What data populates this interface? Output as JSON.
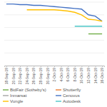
{
  "chart_data": {
    "type": "line",
    "categories": [
      "18-Sep-19",
      "20-Sep-19",
      "22-Sep-19",
      "24-Sep-19",
      "26-Sep-19",
      "28-Sep-19",
      "30-Sep-19",
      "2-Oct-19",
      "4-Oct-19",
      "6-Oct-19",
      "8-Oct-19",
      "10-Oct-19",
      "12-Oct-19",
      "14-Oct-19",
      "16-Oct-19"
    ],
    "series": [
      {
        "name": "BidFair (Sotheby's)",
        "color": "#70ad47",
        "values": [
          null,
          null,
          null,
          null,
          null,
          null,
          null,
          null,
          null,
          null,
          null,
          null,
          50,
          50,
          50
        ]
      },
      {
        "name": "Shutterfly",
        "color": "#ed7d31",
        "values": [
          null,
          null,
          null,
          null,
          null,
          null,
          null,
          null,
          null,
          null,
          null,
          null,
          null,
          null,
          null
        ]
      },
      {
        "name": "Inmarsat",
        "color": "#a5a5a5",
        "values": [
          null,
          null,
          null,
          null,
          null,
          null,
          null,
          null,
          null,
          null,
          null,
          null,
          null,
          null,
          null
        ]
      },
      {
        "name": "Cenovus",
        "color": "#4472c4",
        "values": [
          97,
          97,
          96,
          96,
          95,
          95,
          94,
          93,
          92,
          91,
          90,
          89,
          80,
          78,
          70
        ]
      },
      {
        "name": "Vungle",
        "color": "#ffc000",
        "values": [
          null,
          null,
          null,
          88,
          88,
          88,
          88,
          88,
          87,
          86,
          84,
          80,
          73,
          72,
          70
        ]
      },
      {
        "name": "Autodesk",
        "color": "#4bc6c8",
        "values": [
          null,
          null,
          null,
          null,
          null,
          null,
          null,
          null,
          null,
          null,
          62,
          62,
          62,
          62,
          62
        ]
      }
    ],
    "ylim": [
      0,
      100
    ],
    "yticks": [
      0,
      20,
      40,
      60,
      80,
      100
    ],
    "grid": true,
    "tick_labels": "x",
    "legend": "bottom"
  }
}
